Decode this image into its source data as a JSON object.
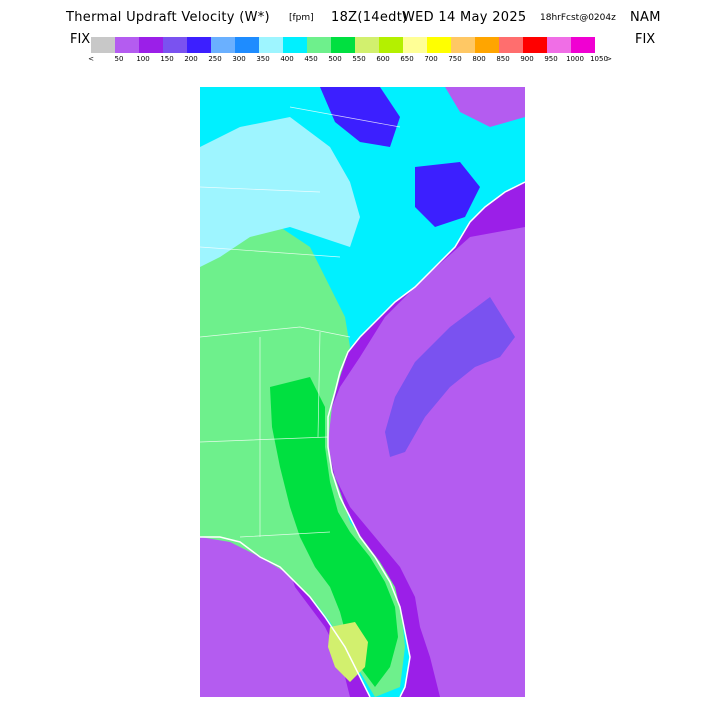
{
  "header": {
    "title": "Thermal Updraft Velocity (W*)",
    "units": "[fpm]",
    "valid_time": "18Z(14edt)",
    "date": "WED 14 May 2025",
    "forecast_info": "18hrFcst@0204z",
    "model": "NAM",
    "fix_left": "FIX",
    "fix_right": "FIX"
  },
  "legend": {
    "colors": [
      "#c8c8c8",
      "#b45cf0",
      "#9b1fe8",
      "#7a52f0",
      "#3c1fff",
      "#6ab0ff",
      "#1e8cff",
      "#9ef5ff",
      "#00f0ff",
      "#6ef08c",
      "#00e040",
      "#d2f06e",
      "#b4f000",
      "#ffff96",
      "#ffff00",
      "#ffc864",
      "#ffa500",
      "#ff6e6e",
      "#ff0000",
      "#f06ee6",
      "#f000d2"
    ],
    "tick_labels": [
      "<",
      "50",
      "100",
      "150",
      "200",
      "250",
      "300",
      "350",
      "400",
      "450",
      "500",
      "550",
      "600",
      "650",
      "700",
      "750",
      "800",
      "850",
      "900",
      "950",
      "1000",
      "1050",
      ">"
    ]
  },
  "map": {
    "ocean_color": "#9b1fe8",
    "ocean_light_color": "#b45cf0",
    "gulf_stream_color": "#7a52f0",
    "land_low_color": "#00f0ff",
    "land_mid_color": "#6ef08c",
    "land_high_color": "#00e040",
    "land_peak_color": "#d2f06e",
    "mountain_color": "#9ef5ff",
    "cloud_color": "#3c1fff"
  }
}
